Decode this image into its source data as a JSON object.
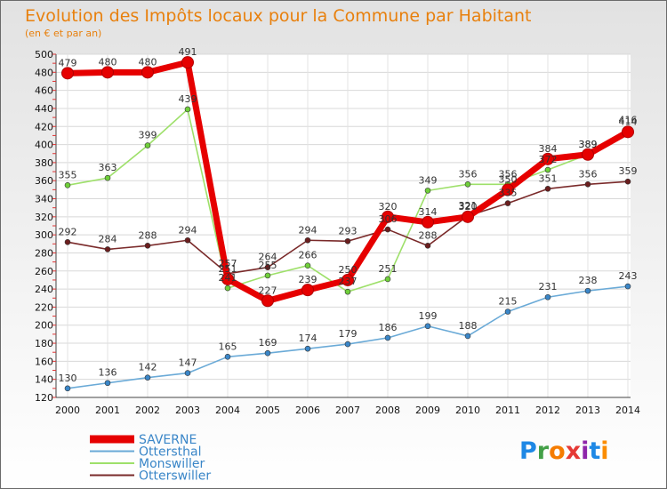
{
  "chart_data": {
    "type": "line",
    "title": "Evolution des Impôts locaux pour la Commune par Habitant",
    "subtitle": "(en € et par an)",
    "xlabel": "",
    "ylabel": "",
    "x": [
      "2000",
      "2001",
      "2002",
      "2003",
      "2004",
      "2005",
      "2006",
      "2007",
      "2008",
      "2009",
      "2010",
      "2011",
      "2012",
      "2013",
      "2014"
    ],
    "ylim": [
      120,
      500
    ],
    "y_ticks": [
      120,
      140,
      160,
      180,
      200,
      220,
      240,
      260,
      280,
      300,
      320,
      340,
      360,
      380,
      400,
      420,
      440,
      460,
      480,
      500
    ],
    "grid": true,
    "legend_position": "bottom-left",
    "series": [
      {
        "name": "SAVERNE",
        "color": "#e60000",
        "marker": "#e60000",
        "thick": true,
        "values": [
          479,
          480,
          480,
          491,
          251,
          227,
          239,
          250,
          320,
          314,
          320,
          350,
          384,
          389,
          414
        ],
        "labels": [
          "479",
          "480",
          "480",
          "491",
          "251",
          "227",
          "239",
          "250",
          "320",
          "314",
          "320",
          "350",
          "384",
          "389",
          "414"
        ]
      },
      {
        "name": "Ottersthal",
        "color": "#6aaad7",
        "marker": "#3a86c8",
        "thick": false,
        "values": [
          130,
          136,
          142,
          147,
          165,
          169,
          174,
          179,
          186,
          199,
          188,
          215,
          231,
          238,
          243
        ],
        "labels": [
          "130",
          "136",
          "142",
          "147",
          "165",
          "169",
          "174",
          "179",
          "186",
          "199",
          "188",
          "215",
          "231",
          "238",
          "243"
        ]
      },
      {
        "name": "Monswiller",
        "color": "#9ee06a",
        "marker": "#6fcf3a",
        "thick": false,
        "values": [
          355,
          363,
          399,
          439,
          241,
          255,
          266,
          237,
          251,
          349,
          356,
          356,
          372,
          389,
          416
        ],
        "labels": [
          "355",
          "363",
          "399",
          "439",
          "241",
          "255",
          "266",
          "237",
          "251",
          "349",
          "356",
          "356",
          "372",
          "389",
          "416"
        ]
      },
      {
        "name": "Otterswiller",
        "color": "#7a2a2a",
        "marker": "#6b1e1e",
        "thick": false,
        "values": [
          292,
          284,
          288,
          294,
          257,
          264,
          294,
          293,
          306,
          288,
          321,
          335,
          351,
          356,
          359
        ],
        "labels": [
          "292",
          "284",
          "288",
          "294",
          "257",
          "264",
          "294",
          "293",
          "306",
          "288",
          "321",
          "335",
          "351",
          "356",
          "359"
        ]
      }
    ]
  },
  "logo": {
    "text": "Proxiti",
    "colors": [
      "#1e88e5",
      "#43a047",
      "#f57c00",
      "#e53935",
      "#8e24aa",
      "#1e88e5",
      "#fb8c00"
    ]
  }
}
